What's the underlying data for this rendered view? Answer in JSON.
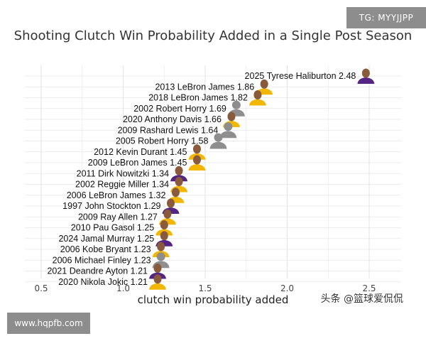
{
  "badges": {
    "top_right": "TG: MYYJJPP",
    "bottom_left": "www.hqpfb.com",
    "watermark": "头条 @篮球爱侃侃"
  },
  "colors": {
    "grid": "#e6e6e6",
    "text": "#111111",
    "avatar_skin": "#8a5a3c",
    "avatar_jersey_gold": "#f2b705",
    "avatar_jersey_purple": "#552583",
    "avatar_silhouette": "#8e8e8e"
  },
  "chart_data": {
    "type": "scatter",
    "title": "Shooting Clutch Win Probability Added in a Single Post Season",
    "xlabel": "clutch win probability added",
    "ylabel": "",
    "xlim": [
      0.4,
      2.65
    ],
    "xticks": [
      0.5,
      1.0,
      1.5,
      2.0,
      2.5
    ],
    "xtick_labels": [
      "0.5",
      "1.0",
      "1.5",
      "2.0",
      "2.5"
    ],
    "grid": true,
    "points": [
      {
        "label": "2025 Tyrese Haliburton 2.48",
        "value": 2.48,
        "avatar": "photo"
      },
      {
        "label": "2013 LeBron James 1.86",
        "value": 1.86,
        "avatar": "photo"
      },
      {
        "label": "2018 LeBron James 1.82",
        "value": 1.82,
        "avatar": "photo"
      },
      {
        "label": "2002 Robert Horry 1.69",
        "value": 1.69,
        "avatar": "silhouette"
      },
      {
        "label": "2020 Anthony Davis 1.66",
        "value": 1.66,
        "avatar": "photo"
      },
      {
        "label": "2009 Rashard Lewis 1.64",
        "value": 1.64,
        "avatar": "silhouette"
      },
      {
        "label": "2005 Robert Horry 1.58",
        "value": 1.58,
        "avatar": "silhouette"
      },
      {
        "label": "2012 Kevin Durant 1.45",
        "value": 1.45,
        "avatar": "photo"
      },
      {
        "label": "2009 LeBron James 1.45",
        "value": 1.45,
        "avatar": "photo"
      },
      {
        "label": "2011 Dirk Nowitzki 1.34",
        "value": 1.34,
        "avatar": "photo"
      },
      {
        "label": "2002 Reggie Miller 1.34",
        "value": 1.34,
        "avatar": "photo"
      },
      {
        "label": "2006 LeBron James 1.32",
        "value": 1.32,
        "avatar": "photo"
      },
      {
        "label": "1997 John Stockton 1.29",
        "value": 1.29,
        "avatar": "photo"
      },
      {
        "label": "2009 Ray Allen 1.27",
        "value": 1.27,
        "avatar": "photo"
      },
      {
        "label": "2010 Pau Gasol 1.25",
        "value": 1.25,
        "avatar": "photo"
      },
      {
        "label": "2024 Jamal Murray 1.25",
        "value": 1.25,
        "avatar": "photo"
      },
      {
        "label": "2006 Kobe Bryant 1.23",
        "value": 1.23,
        "avatar": "photo"
      },
      {
        "label": "2006 Michael Finley 1.23",
        "value": 1.23,
        "avatar": "silhouette"
      },
      {
        "label": "2021 Deandre Ayton 1.21",
        "value": 1.21,
        "avatar": "photo"
      },
      {
        "label": "2020 Nikola Jokic 1.21",
        "value": 1.21,
        "avatar": "photo"
      }
    ]
  }
}
